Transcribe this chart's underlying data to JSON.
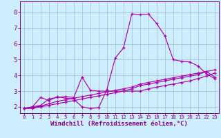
{
  "background_color": "#cceeff",
  "line_color": "#aa00aa",
  "grid_color": "#aabbcc",
  "xlabel": "Windchill (Refroidissement éolien,°C)",
  "xlabel_fontsize": 6.5,
  "xtick_fontsize": 5.2,
  "ytick_fontsize": 6.5,
  "xlim": [
    -0.5,
    23.5
  ],
  "ylim": [
    1.6,
    8.7
  ],
  "yticks": [
    2,
    3,
    4,
    5,
    6,
    7,
    8
  ],
  "line1_x": [
    0,
    1,
    2,
    3,
    4,
    5,
    6,
    7,
    8,
    9,
    10,
    11,
    12,
    13,
    14,
    15,
    16,
    17,
    18,
    19,
    20,
    21,
    22,
    23
  ],
  "line1_y": [
    1.9,
    2.0,
    2.6,
    2.4,
    2.65,
    2.55,
    2.5,
    2.0,
    1.9,
    1.95,
    3.1,
    5.1,
    5.75,
    7.9,
    7.85,
    7.9,
    7.3,
    6.5,
    5.0,
    4.9,
    4.85,
    4.6,
    4.1,
    3.8
  ],
  "line2_x": [
    0,
    1,
    2,
    3,
    4,
    5,
    6,
    7,
    8,
    9,
    10,
    11,
    12,
    13,
    14,
    15,
    16,
    17,
    18,
    19,
    20,
    21,
    22,
    23
  ],
  "line2_y": [
    1.9,
    2.0,
    2.1,
    2.5,
    2.6,
    2.65,
    2.6,
    3.9,
    3.05,
    3.0,
    3.0,
    3.0,
    3.0,
    3.0,
    3.0,
    3.15,
    3.25,
    3.35,
    3.45,
    3.55,
    3.65,
    3.8,
    3.95,
    4.15
  ],
  "line3_x": [
    0,
    1,
    2,
    3,
    4,
    5,
    6,
    7,
    8,
    9,
    10,
    11,
    12,
    13,
    14,
    15,
    16,
    17,
    18,
    19,
    20,
    21,
    22,
    23
  ],
  "line3_y": [
    1.9,
    1.95,
    2.05,
    2.2,
    2.35,
    2.45,
    2.55,
    2.65,
    2.75,
    2.85,
    2.95,
    3.05,
    3.15,
    3.25,
    3.45,
    3.55,
    3.65,
    3.75,
    3.85,
    3.95,
    4.05,
    4.15,
    4.25,
    3.9
  ],
  "line4_x": [
    0,
    1,
    2,
    3,
    4,
    5,
    6,
    7,
    8,
    9,
    10,
    11,
    12,
    13,
    14,
    15,
    16,
    17,
    18,
    19,
    20,
    21,
    22,
    23
  ],
  "line4_y": [
    1.9,
    1.9,
    2.0,
    2.1,
    2.2,
    2.3,
    2.4,
    2.5,
    2.6,
    2.7,
    2.8,
    2.9,
    3.0,
    3.15,
    3.35,
    3.45,
    3.55,
    3.65,
    3.75,
    3.85,
    3.95,
    4.05,
    4.25,
    4.35
  ]
}
